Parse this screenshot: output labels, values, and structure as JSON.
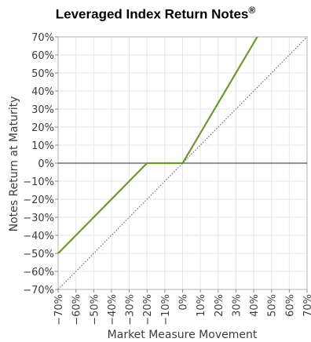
{
  "chart_data": {
    "type": "line",
    "title": "Leveraged Index Return Notes",
    "title_mark": "®",
    "xlabel": "Market Measure Movement",
    "ylabel": "Notes Return at Maturity",
    "xlim": [
      -70,
      70
    ],
    "ylim": [
      -70,
      70
    ],
    "x_ticks": [
      -70,
      -60,
      -50,
      -40,
      -30,
      -20,
      -10,
      0,
      10,
      20,
      30,
      40,
      50,
      60,
      70
    ],
    "y_ticks": [
      70,
      60,
      50,
      40,
      30,
      20,
      10,
      0,
      -10,
      -20,
      -30,
      -40,
      -50,
      -60,
      -70
    ],
    "tick_suffix": "%",
    "grid": true,
    "series": [
      {
        "color": "#6a9a2e",
        "style": "solid",
        "x": [
          -70,
          -20,
          0,
          42
        ],
        "y": [
          -50,
          0,
          0,
          70
        ]
      },
      {
        "color": "#555555",
        "style": "dotted",
        "x": [
          -70,
          70
        ],
        "y": [
          -70,
          70
        ]
      }
    ]
  }
}
